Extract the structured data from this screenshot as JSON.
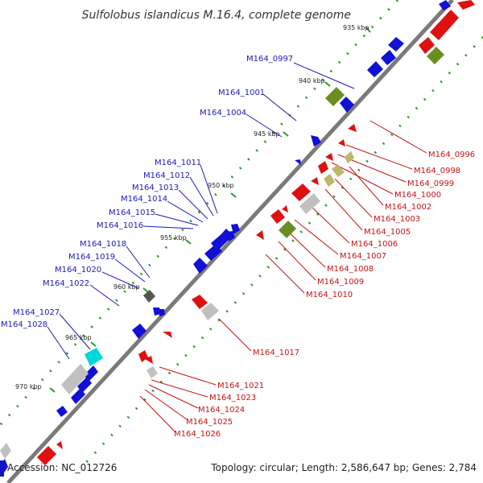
{
  "title": "Sulfolobus islandicus M.16.4, complete genome",
  "footer": {
    "accession": "Accession: NC_012726",
    "topology": "Topology: circular; Length: 2,586,647 bp; Genes: 2,784"
  },
  "colors": {
    "backbone": "#7a7a7a",
    "forward_cds": "#1010d8",
    "reverse_cds": "#e01010",
    "trna": "#6b8e23",
    "other": "#bdb76b",
    "pseudo": "#c0c0c0",
    "rna": "#00d8d8",
    "tick": "#2a9a2a",
    "label_forward": "#1a1ab8",
    "label_reverse": "#c41414"
  },
  "scale_ticks": [
    "935 kbp",
    "940 kbp",
    "945 kbp",
    "950 kbp",
    "955 kbp",
    "960 kbp",
    "965 kbp",
    "970 kbp"
  ],
  "forward_genes": [
    "M164_0997",
    "M164_1001",
    "M164_1004",
    "M164_1011",
    "M164_1012",
    "M164_1013",
    "M164_1014",
    "M164_1015",
    "M164_1016",
    "M164_1018",
    "M164_1019",
    "M164_1020",
    "M164_1022",
    "M164_1027",
    "M164_1028"
  ],
  "reverse_genes": [
    "M164_0996",
    "M164_0998",
    "M164_0999",
    "M164_1000",
    "M164_1002",
    "M164_1003",
    "M164_1005",
    "M164_1006",
    "M164_1007",
    "M164_1008",
    "M164_1009",
    "M164_1010",
    "M164_1017",
    "M164_1021",
    "M164_1023",
    "M164_1024",
    "M164_1025",
    "M164_1026"
  ]
}
